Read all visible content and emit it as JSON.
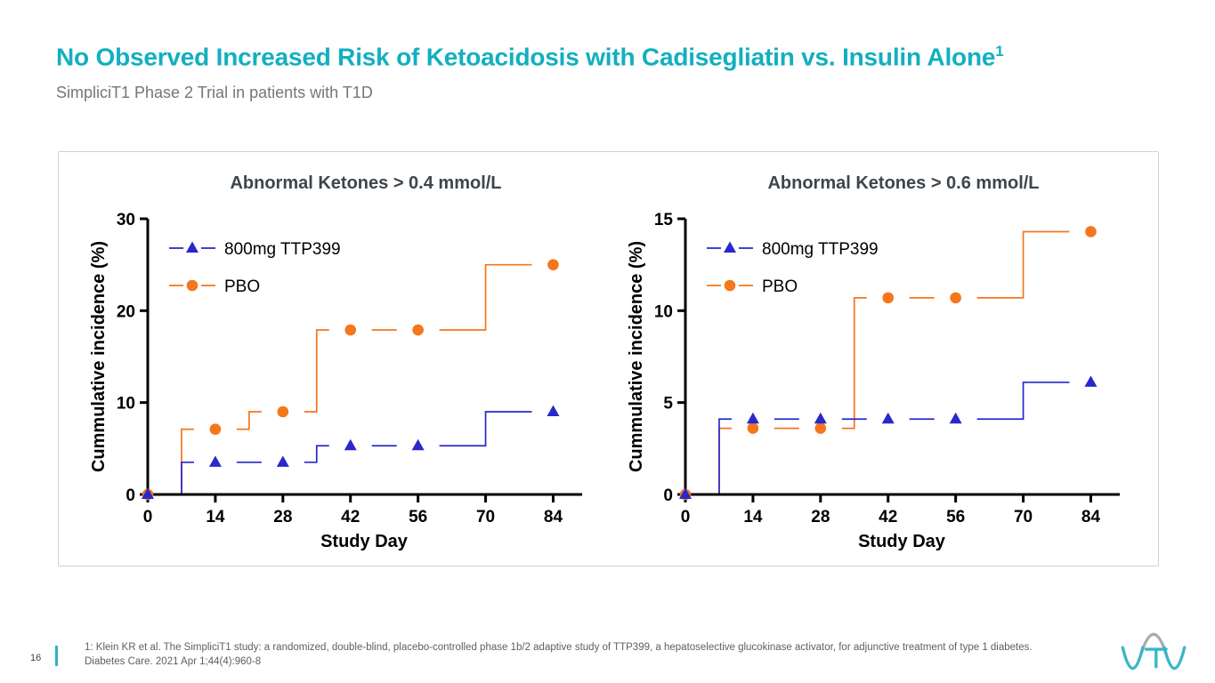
{
  "header": {
    "title": "No Observed Increased Risk of Ketoacidosis with Cadisegliatin vs. Insulin Alone",
    "title_superscript": "1",
    "subtitle": "SimpliciT1 Phase 2 Trial in patients with T1D"
  },
  "chart_data": [
    {
      "type": "line",
      "variant": "step",
      "title": "Abnormal Ketones > 0.4 mmol/L",
      "xlabel": "Study Day",
      "ylabel": "Cummulative incidence (%)",
      "xlim": [
        0,
        90
      ],
      "ylim": [
        0,
        30
      ],
      "xticks": [
        0,
        14,
        28,
        42,
        56,
        70,
        84
      ],
      "yticks": [
        0,
        10,
        20,
        30
      ],
      "grid": false,
      "legend_position": "inside-top-left",
      "series": [
        {
          "name": "800mg TTP399",
          "color": "#2828CC",
          "marker": "triangle",
          "steps": [
            [
              0,
              0
            ],
            [
              7,
              3.5
            ],
            [
              35,
              5.3
            ],
            [
              70,
              9
            ]
          ],
          "line_end": 80,
          "markers": [
            [
              0,
              0
            ],
            [
              14,
              3.5
            ],
            [
              28,
              3.5
            ],
            [
              42,
              5.3
            ],
            [
              56,
              5.3
            ],
            [
              84,
              9
            ]
          ]
        },
        {
          "name": "PBO",
          "color": "#F5761B",
          "marker": "circle",
          "steps": [
            [
              0,
              0
            ],
            [
              7,
              7.1
            ],
            [
              21,
              9
            ],
            [
              35,
              17.9
            ],
            [
              70,
              25
            ]
          ],
          "line_end": 80,
          "markers": [
            [
              0,
              0
            ],
            [
              14,
              7.1
            ],
            [
              28,
              9
            ],
            [
              42,
              17.9
            ],
            [
              56,
              17.9
            ],
            [
              84,
              25
            ]
          ]
        }
      ]
    },
    {
      "type": "line",
      "variant": "step",
      "title": "Abnormal Ketones > 0.6 mmol/L",
      "xlabel": "Study Day",
      "ylabel": "Cummulative incidence (%)",
      "xlim": [
        0,
        90
      ],
      "ylim": [
        0,
        15
      ],
      "xticks": [
        0,
        14,
        28,
        42,
        56,
        70,
        84
      ],
      "yticks": [
        0,
        5,
        10,
        15
      ],
      "grid": false,
      "legend_position": "inside-top-left",
      "series": [
        {
          "name": "800mg TTP399",
          "color": "#2828CC",
          "marker": "triangle",
          "steps": [
            [
              0,
              0
            ],
            [
              7,
              4.1
            ],
            [
              70,
              6.1
            ]
          ],
          "line_end": 80,
          "markers": [
            [
              0,
              0
            ],
            [
              14,
              4.1
            ],
            [
              28,
              4.1
            ],
            [
              42,
              4.1
            ],
            [
              56,
              4.1
            ],
            [
              84,
              6.1
            ]
          ]
        },
        {
          "name": "PBO",
          "color": "#F5761B",
          "marker": "circle",
          "steps": [
            [
              0,
              0
            ],
            [
              7,
              3.6
            ],
            [
              35,
              10.7
            ],
            [
              70,
              14.3
            ]
          ],
          "line_end": 80,
          "markers": [
            [
              0,
              0
            ],
            [
              14,
              3.6
            ],
            [
              28,
              3.6
            ],
            [
              42,
              10.7
            ],
            [
              56,
              10.7
            ],
            [
              84,
              14.3
            ]
          ]
        }
      ]
    }
  ],
  "footer": {
    "page_number": "16",
    "citation": "1: Klein KR et al. The SimpliciT1 study: a randomized, double-blind, placebo-controlled phase 1b/2 adaptive study of TTP399, a hepatoselective glucokinase activator, for adjunctive treatment of type 1 diabetes. Diabetes Care. 2021 Apr 1;44(4):960-8"
  },
  "colors": {
    "accent_teal": "#12AFC0",
    "series_blue": "#2828CC",
    "series_orange": "#F5761B",
    "axis": "#000000",
    "panel_border": "#C7D4DD",
    "logo_teal": "#3AB6C8",
    "logo_gray": "#A9ACAE"
  }
}
